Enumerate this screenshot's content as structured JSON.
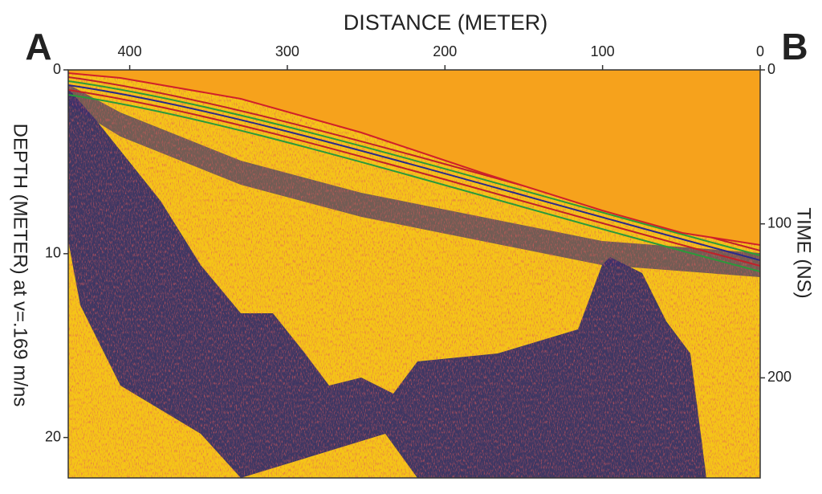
{
  "chart_data": {
    "type": "radargram",
    "title": "DISTANCE (METER)",
    "y_label": "DEPTH (METER) at v=.169 m/ns",
    "y2_label": "TIME (NS)",
    "annotations": [
      "A",
      "B"
    ],
    "xlim": [
      439,
      0
    ],
    "xticks": [
      400,
      300,
      200,
      100,
      0
    ],
    "ylim": [
      0,
      22.2
    ],
    "yticks": [
      0,
      10,
      20
    ],
    "y2lim": [
      0,
      265
    ],
    "y2ticks": [
      0,
      100,
      200
    ]
  }
}
